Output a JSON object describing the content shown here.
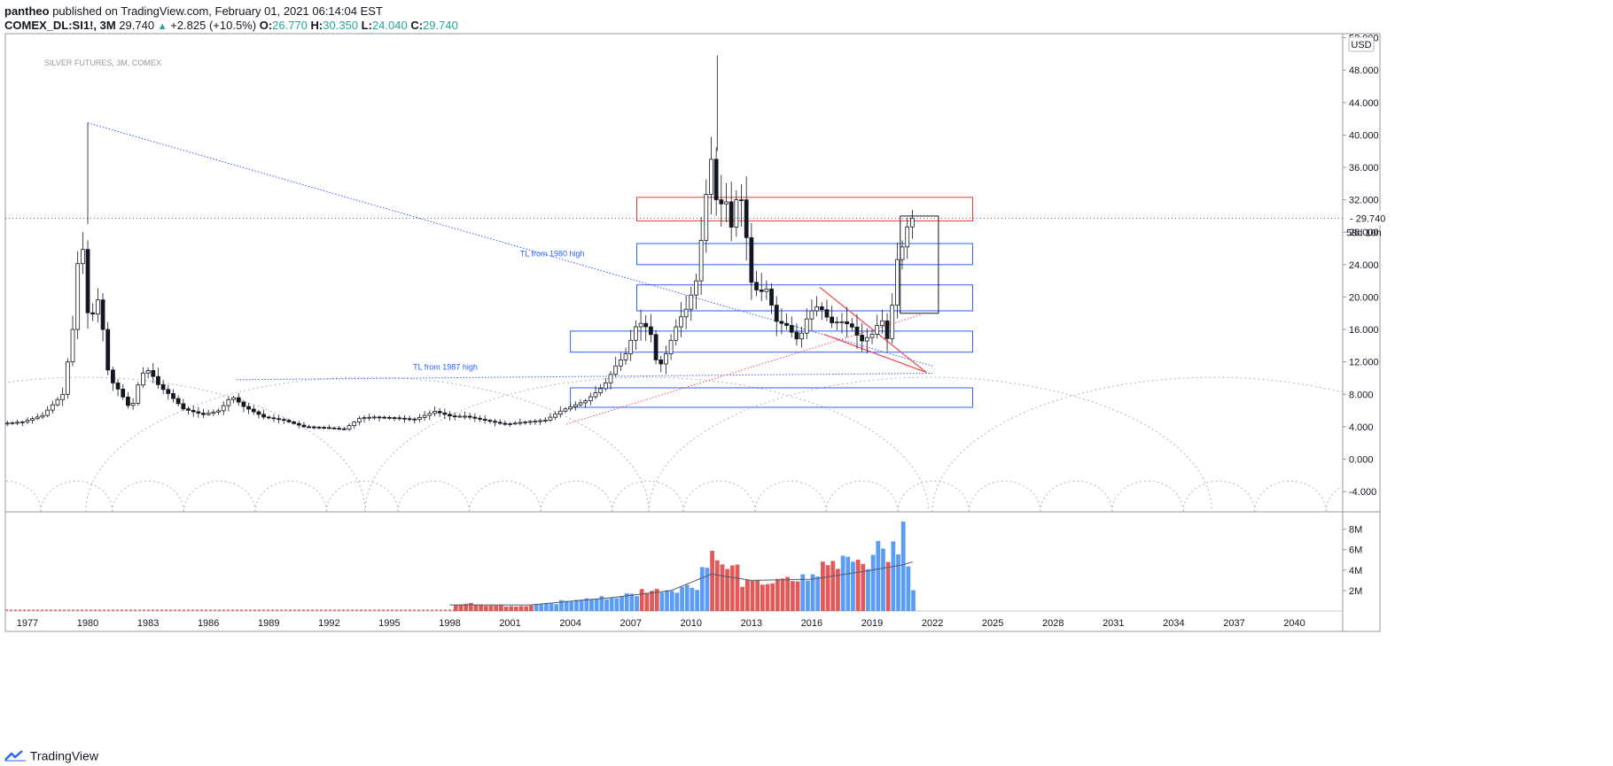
{
  "header": {
    "author": "pantheo",
    "published": "published on TradingView.com, February 01, 2021 06:14:04 EST",
    "symbol": "COMEX_DL:SI1!, 3M",
    "last": "29.740",
    "change": "+2.825 (+10.5%)",
    "o_label": "O:",
    "o_value": "26.770",
    "h_label": "H:",
    "h_value": "30.350",
    "l_label": "L:",
    "l_value": "24.040",
    "c_label": "C:",
    "c_value": "29.740"
  },
  "footer": {
    "brand": "TradingView"
  },
  "colors": {
    "up": "#131722",
    "down": "#131722",
    "vol_up": "#5b9cf6",
    "vol_down": "#e05a5a",
    "blue_zone": "#2962ff",
    "red_zone": "#e53935",
    "trend_blue": "#3d5afe",
    "trend_red": "#ef5350"
  },
  "chart_data": {
    "type": "candlestick",
    "watermark": "SILVER FUTURES, 3M, COMEX",
    "currency_label": "USD",
    "last_price_label": "29.740",
    "countdown_label": "58d 10h",
    "price_axis": {
      "ylim": [
        -6.5,
        52.5
      ],
      "ticks": [
        "52.000",
        "48.000",
        "44.000",
        "40.000",
        "36.000",
        "32.000",
        "28.000",
        "24.000",
        "20.000",
        "16.000",
        "12.000",
        "8.000",
        "4.000",
        "0.000",
        "-4.000"
      ]
    },
    "volume_axis": {
      "ticks": [
        "8M",
        "6M",
        "4M",
        "2M"
      ],
      "max": 9
    },
    "time_axis": {
      "xlim": [
        1975.9,
        2042.4
      ],
      "ticks": [
        "1977",
        "1980",
        "1983",
        "1986",
        "1989",
        "1992",
        "1995",
        "1998",
        "2001",
        "2004",
        "2007",
        "2010",
        "2013",
        "2016",
        "2019",
        "2022",
        "2025",
        "2028",
        "2031",
        "2034",
        "2037",
        "2040"
      ]
    },
    "series": [
      {
        "name": "SI1!",
        "close_path": [
          [
            1976.0,
            4.4
          ],
          [
            1977.0,
            4.6
          ],
          [
            1978.0,
            5.4
          ],
          [
            1979.0,
            8.0
          ],
          [
            1979.5,
            16.0
          ],
          [
            1979.9,
            29.0
          ],
          [
            1980.3,
            16.5
          ],
          [
            1980.8,
            20.0
          ],
          [
            1981.3,
            10.0
          ],
          [
            1981.8,
            8.5
          ],
          [
            1982.4,
            6.0
          ],
          [
            1982.9,
            10.5
          ],
          [
            1983.3,
            11.0
          ],
          [
            1983.8,
            9.0
          ],
          [
            1984.3,
            8.0
          ],
          [
            1985.0,
            6.2
          ],
          [
            1986.0,
            5.5
          ],
          [
            1986.8,
            6.0
          ],
          [
            1987.4,
            7.8
          ],
          [
            1988.0,
            6.5
          ],
          [
            1989.0,
            5.2
          ],
          [
            1990.0,
            4.8
          ],
          [
            1991.0,
            4.0
          ],
          [
            1992.0,
            3.9
          ],
          [
            1993.0,
            3.7
          ],
          [
            1993.8,
            5.1
          ],
          [
            1994.5,
            5.2
          ],
          [
            1995.5,
            5.1
          ],
          [
            1996.5,
            4.9
          ],
          [
            1997.5,
            5.9
          ],
          [
            1998.3,
            5.3
          ],
          [
            1999.0,
            5.3
          ],
          [
            2000.0,
            4.8
          ],
          [
            2001.0,
            4.3
          ],
          [
            2002.0,
            4.6
          ],
          [
            2003.0,
            4.8
          ],
          [
            2003.8,
            6.0
          ],
          [
            2004.3,
            6.5
          ],
          [
            2005.0,
            7.2
          ],
          [
            2005.9,
            9.0
          ],
          [
            2006.5,
            11.5
          ],
          [
            2007.0,
            13.0
          ],
          [
            2007.6,
            17.0
          ],
          [
            2008.2,
            16.0
          ],
          [
            2008.6,
            11.0
          ],
          [
            2009.0,
            13.0
          ],
          [
            2009.6,
            17.0
          ],
          [
            2010.0,
            18.5
          ],
          [
            2010.5,
            22.0
          ],
          [
            2010.9,
            30.0
          ],
          [
            2011.2,
            38.0
          ],
          [
            2011.6,
            30.0
          ],
          [
            2011.9,
            33.0
          ],
          [
            2012.3,
            28.0
          ],
          [
            2012.6,
            34.0
          ],
          [
            2012.9,
            30.0
          ],
          [
            2013.2,
            22.0
          ],
          [
            2013.6,
            20.5
          ],
          [
            2014.0,
            21.0
          ],
          [
            2014.5,
            17.0
          ],
          [
            2015.0,
            16.5
          ],
          [
            2015.6,
            14.5
          ],
          [
            2016.1,
            18.0
          ],
          [
            2016.6,
            19.0
          ],
          [
            2017.2,
            16.8
          ],
          [
            2017.7,
            17.0
          ],
          [
            2018.2,
            16.5
          ],
          [
            2018.7,
            14.5
          ],
          [
            2019.3,
            15.5
          ],
          [
            2019.7,
            17.5
          ],
          [
            2020.1,
            14.0
          ],
          [
            2020.4,
            24.0
          ],
          [
            2020.8,
            26.5
          ],
          [
            2021.1,
            29.74
          ]
        ]
      }
    ],
    "volume_series": [
      {
        "year": 1998.3,
        "v": 0.6,
        "dir": "down"
      },
      {
        "year": 1999.0,
        "v": 0.7,
        "dir": "down"
      },
      {
        "year": 2000.0,
        "v": 0.6,
        "dir": "down"
      },
      {
        "year": 2001.5,
        "v": 0.5,
        "dir": "down"
      },
      {
        "year": 2003.0,
        "v": 0.7,
        "dir": "up"
      },
      {
        "year": 2004.0,
        "v": 1.0,
        "dir": "up"
      },
      {
        "year": 2005.0,
        "v": 1.2,
        "dir": "up"
      },
      {
        "year": 2006.0,
        "v": 1.3,
        "dir": "up"
      },
      {
        "year": 2007.0,
        "v": 1.6,
        "dir": "up"
      },
      {
        "year": 2008.0,
        "v": 2.0,
        "dir": "down"
      },
      {
        "year": 2009.0,
        "v": 2.1,
        "dir": "up"
      },
      {
        "year": 2010.0,
        "v": 2.4,
        "dir": "up"
      },
      {
        "year": 2010.7,
        "v": 4.3,
        "dir": "up"
      },
      {
        "year": 2011.2,
        "v": 5.8,
        "dir": "down"
      },
      {
        "year": 2011.8,
        "v": 4.2,
        "dir": "down"
      },
      {
        "year": 2013.0,
        "v": 2.7,
        "dir": "down"
      },
      {
        "year": 2014.0,
        "v": 2.8,
        "dir": "down"
      },
      {
        "year": 2015.0,
        "v": 3.0,
        "dir": "down"
      },
      {
        "year": 2016.0,
        "v": 3.3,
        "dir": "up"
      },
      {
        "year": 2017.0,
        "v": 4.7,
        "dir": "down"
      },
      {
        "year": 2017.7,
        "v": 5.5,
        "dir": "up"
      },
      {
        "year": 2018.5,
        "v": 5.0,
        "dir": "down"
      },
      {
        "year": 2019.0,
        "v": 4.8,
        "dir": "up"
      },
      {
        "year": 2019.4,
        "v": 6.6,
        "dir": "up"
      },
      {
        "year": 2019.8,
        "v": 5.2,
        "dir": "down"
      },
      {
        "year": 2020.2,
        "v": 6.0,
        "dir": "up"
      },
      {
        "year": 2020.4,
        "v": 3.4,
        "dir": "down"
      },
      {
        "year": 2020.6,
        "v": 8.2,
        "dir": "up"
      },
      {
        "year": 2020.9,
        "v": 4.2,
        "dir": "up"
      },
      {
        "year": 2021.1,
        "v": 2.1,
        "dir": "up"
      }
    ],
    "volume_ma": [
      [
        1998,
        0.6
      ],
      [
        2002,
        0.6
      ],
      [
        2006,
        1.3
      ],
      [
        2009,
        2.0
      ],
      [
        2011,
        3.6
      ],
      [
        2013,
        3.0
      ],
      [
        2016,
        3.1
      ],
      [
        2019,
        4.0
      ],
      [
        2020.5,
        4.5
      ],
      [
        2021,
        4.8
      ]
    ],
    "annotations": [
      {
        "type": "trendline",
        "label": "TL from 1980 high",
        "from": [
          1980.0,
          41.5
        ],
        "to": [
          2022.0,
          11.5
        ],
        "color": "blue"
      },
      {
        "type": "trendline",
        "label": "TL from 1987 high",
        "from": [
          1987.4,
          9.8
        ],
        "to": [
          2022.0,
          10.6
        ],
        "color": "blue"
      },
      {
        "type": "trendline",
        "label": "",
        "from": [
          2003.8,
          4.3
        ],
        "to": [
          2021.4,
          17.8
        ],
        "color": "red"
      },
      {
        "type": "wedge",
        "label": "",
        "from": [
          2016.4,
          21.2
        ],
        "apex": [
          2021.7,
          10.7
        ],
        "lower_from": [
          2016.6,
          15.4
        ],
        "color": "red"
      },
      {
        "type": "box",
        "label": "",
        "x": [
          2007.3,
          2024.0
        ],
        "y": [
          29.4,
          32.3
        ],
        "color": "red"
      },
      {
        "type": "box",
        "label": "",
        "x": [
          2007.3,
          2024.0
        ],
        "y": [
          24.0,
          26.6
        ],
        "color": "blue"
      },
      {
        "type": "box",
        "label": "",
        "x": [
          2007.3,
          2024.0
        ],
        "y": [
          18.3,
          21.5
        ],
        "color": "blue"
      },
      {
        "type": "box",
        "label": "",
        "x": [
          2004.0,
          2024.0
        ],
        "y": [
          13.2,
          15.8
        ],
        "color": "blue"
      },
      {
        "type": "box",
        "label": "",
        "x": [
          2004.0,
          2024.0
        ],
        "y": [
          6.4,
          8.8
        ],
        "color": "blue"
      },
      {
        "type": "box",
        "label": "",
        "x": [
          2020.4,
          2022.3
        ],
        "y": [
          18.0,
          30.0
        ],
        "color": "black"
      }
    ],
    "cycle_arcs": {
      "large_centers": [
        1979.8,
        1993.9,
        2007.8,
        2021.9,
        2036.0
      ],
      "large_radius_years": 14,
      "small_period_years": 3.55
    }
  }
}
